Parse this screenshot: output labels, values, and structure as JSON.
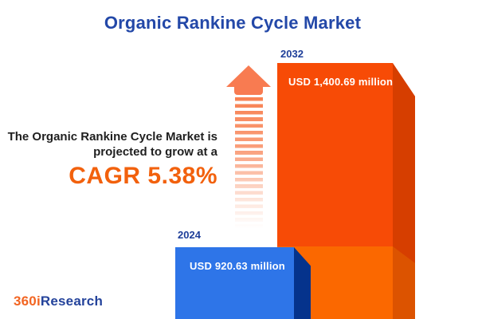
{
  "title": "Organic Rankine Cycle Market",
  "annotation": {
    "line1": "The Organic Rankine Cycle Market is",
    "line2": "projected to grow at a",
    "cagr": "CAGR 5.38%"
  },
  "bars": {
    "y2024": {
      "year": "2024",
      "value_label": "USD 920.63 million",
      "face_color": "#2e75e8",
      "side_color": "#05338c"
    },
    "y2032": {
      "year": "2032",
      "value_label": "USD 1,400.69 million",
      "face_color": "#f74b06",
      "side_color": "#d63e00",
      "growth_face_color": "#fb6800",
      "growth_side_color": "#dc5300"
    }
  },
  "arrow": {
    "color": "#f87b51"
  },
  "logo": {
    "part1": "360i",
    "part2": "Research",
    "part1_color": "#f26522",
    "part2_color": "#24439b"
  },
  "colors": {
    "background": "#ffffff",
    "title": "#2348a8",
    "year_label": "#1e3e99",
    "annotation_text": "#1f1f1f",
    "cagr": "#f2610d",
    "value_label_text": "#ffffff"
  },
  "chart_data": {
    "type": "bar",
    "categories": [
      "2024",
      "2032"
    ],
    "values": [
      920.63,
      1400.69
    ],
    "unit": "USD million",
    "value_labels": [
      "USD 920.63 million",
      "USD 1,400.69 million"
    ],
    "title": "Organic Rankine Cycle Market",
    "annotation": "The Organic Rankine Cycle Market is projected to grow at a CAGR 5.38%",
    "cagr_percent": 5.38,
    "orientation": "vertical",
    "grid": false,
    "legend": false
  }
}
